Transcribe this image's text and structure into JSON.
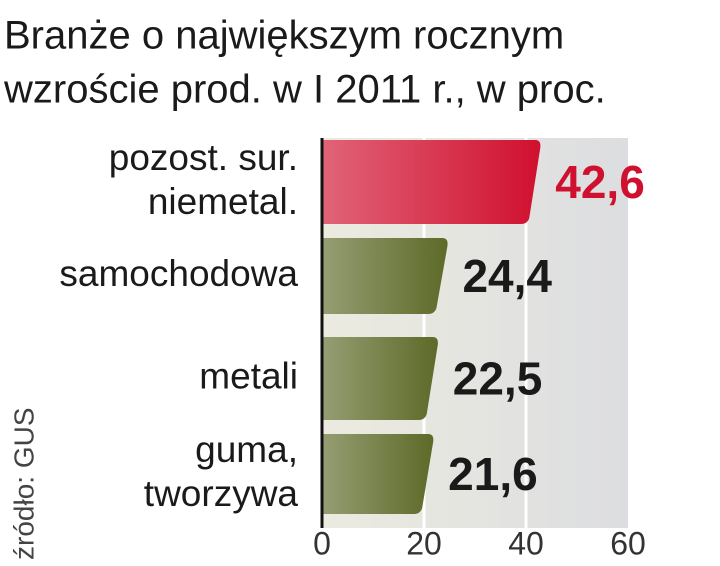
{
  "chart_data": {
    "type": "barh",
    "title": [
      "Branże o największym rocznym",
      "wzroście prod. w I 2011 r., w proc."
    ],
    "source": "źródło: GUS",
    "categories": [
      [
        "pozost. sur.",
        "niemetal."
      ],
      [
        "samochodowa"
      ],
      [
        "metali"
      ],
      [
        "guma,",
        "tworzywa"
      ]
    ],
    "values": [
      42.6,
      24.4,
      22.5,
      21.6
    ],
    "value_labels": [
      "42,6",
      "24,4",
      "22,5",
      "21,6"
    ],
    "colors": [
      "#d0102f",
      "#5d6a28",
      "#5d6a28",
      "#5d6a28"
    ],
    "value_label_colors": [
      "#d0102f",
      "#1a1a1a",
      "#1a1a1a",
      "#1a1a1a"
    ],
    "xlim": [
      0,
      60
    ],
    "xticks": [
      0,
      20,
      40,
      60
    ],
    "grid": true
  }
}
